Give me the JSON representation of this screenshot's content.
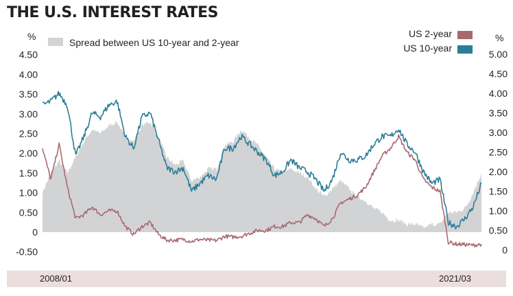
{
  "title": "THE U.S. INTEREST RATES",
  "colors": {
    "us2y": "#a8696f",
    "us10y": "#2b7d97",
    "spread": "#d2d3d4",
    "footer_band": "#ebdede",
    "text": "#231f20"
  },
  "chart_data": {
    "type": "line",
    "x_start_label": "2008/01",
    "x_end_label": "2021/03",
    "x_range": [
      "2008-01",
      "2021-03"
    ],
    "left_axis": {
      "unit": "%",
      "ticks": [
        "4.50",
        "4.00",
        "3.50",
        "3.00",
        "2.50",
        "2.00",
        "1.50",
        "1.00",
        "0.50",
        "0",
        "-0.50"
      ],
      "ylim": [
        -0.5,
        4.5
      ]
    },
    "right_axis": {
      "unit": "%",
      "ticks": [
        "5.00",
        "4.50",
        "4.00",
        "3.50",
        "3.00",
        "2.50",
        "2.00",
        "1.50",
        "1.00",
        "0.50",
        "0"
      ],
      "ylim": [
        0,
        5.0
      ]
    },
    "x": [
      "2008-01",
      "2008-04",
      "2008-07",
      "2008-10",
      "2009-01",
      "2009-04",
      "2009-07",
      "2009-10",
      "2010-01",
      "2010-04",
      "2010-07",
      "2010-10",
      "2011-01",
      "2011-04",
      "2011-07",
      "2011-10",
      "2012-01",
      "2012-04",
      "2012-07",
      "2012-10",
      "2013-01",
      "2013-04",
      "2013-07",
      "2013-10",
      "2014-01",
      "2014-04",
      "2014-07",
      "2014-10",
      "2015-01",
      "2015-04",
      "2015-07",
      "2015-10",
      "2016-01",
      "2016-04",
      "2016-07",
      "2016-10",
      "2017-01",
      "2017-04",
      "2017-07",
      "2017-10",
      "2018-01",
      "2018-04",
      "2018-07",
      "2018-10",
      "2019-01",
      "2019-04",
      "2019-07",
      "2019-10",
      "2020-01",
      "2020-04",
      "2020-07",
      "2020-10",
      "2021-01",
      "2021-03"
    ],
    "series": [
      {
        "name": "Spread between US 10-year and 2-year",
        "axis": "left",
        "type": "area",
        "values": [
          1.0,
          1.5,
          1.8,
          1.5,
          1.9,
          2.3,
          2.6,
          2.5,
          2.7,
          2.8,
          2.4,
          2.3,
          2.7,
          2.8,
          2.4,
          1.9,
          1.7,
          1.8,
          1.3,
          1.4,
          1.6,
          1.6,
          2.2,
          2.3,
          2.6,
          2.4,
          2.2,
          1.9,
          1.6,
          1.5,
          1.6,
          1.5,
          1.4,
          1.1,
          0.9,
          1.1,
          1.3,
          1.1,
          0.9,
          0.8,
          0.6,
          0.5,
          0.3,
          0.3,
          0.2,
          0.2,
          0.1,
          0.2,
          0.2,
          0.5,
          0.5,
          0.6,
          1.0,
          1.5
        ]
      },
      {
        "name": "US 2-year",
        "axis": "right",
        "values": [
          2.6,
          1.8,
          2.7,
          1.6,
          0.8,
          0.9,
          1.1,
          0.9,
          1.0,
          1.0,
          0.6,
          0.4,
          0.6,
          0.7,
          0.4,
          0.25,
          0.25,
          0.27,
          0.22,
          0.27,
          0.25,
          0.24,
          0.35,
          0.33,
          0.35,
          0.43,
          0.5,
          0.5,
          0.6,
          0.6,
          0.7,
          0.7,
          0.9,
          0.8,
          0.6,
          0.8,
          1.2,
          1.3,
          1.4,
          1.6,
          2.0,
          2.4,
          2.6,
          2.9,
          2.5,
          2.3,
          1.8,
          1.6,
          1.5,
          0.2,
          0.15,
          0.14,
          0.12,
          0.15
        ]
      },
      {
        "name": "US 10-year",
        "axis": "right",
        "values": [
          3.7,
          3.8,
          4.0,
          3.7,
          2.4,
          2.9,
          3.5,
          3.4,
          3.7,
          3.8,
          2.9,
          2.6,
          3.4,
          3.5,
          2.8,
          2.1,
          2.0,
          2.1,
          1.5,
          1.7,
          1.9,
          1.8,
          2.6,
          2.6,
          2.9,
          2.7,
          2.5,
          2.3,
          1.9,
          2.0,
          2.3,
          2.1,
          2.0,
          1.8,
          1.5,
          1.8,
          2.5,
          2.3,
          2.3,
          2.4,
          2.7,
          2.9,
          2.9,
          3.1,
          2.7,
          2.5,
          2.0,
          1.7,
          1.8,
          0.7,
          0.6,
          0.8,
          1.1,
          1.7
        ]
      }
    ],
    "legend": [
      "US 2-year",
      "US 10-year",
      "Spread between US 10-year and 2-year"
    ]
  }
}
